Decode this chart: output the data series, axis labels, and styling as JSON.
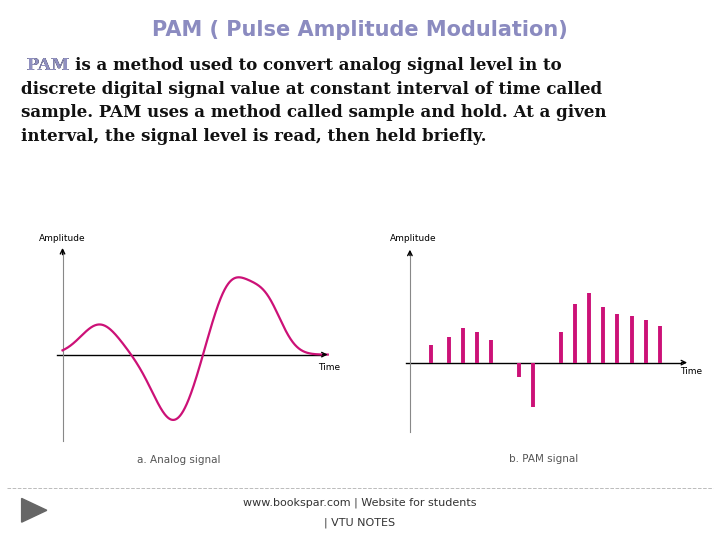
{
  "title": "PAM ( Pulse Amplitude Modulation)",
  "title_color": "#8B8BC0",
  "title_fontsize": 15,
  "pam_word_color": "#9090C0",
  "body_text_black": "is a method used to convert analog signal level in to\ndiscrete digital signal value at constant interval of time called\nsample. PAM uses a method called sample and hold. At a given\ninterval, the signal level is read, then held briefly.",
  "body_fontsize": 12,
  "signal_color": "#CC1177",
  "axis_color": "#000000",
  "label_a": "a. Analog signal",
  "label_b": "b. PAM signal",
  "amplitude_label": "Amplitude",
  "time_label": "Time",
  "footer_line1": "www.bookspar.com | Website for students",
  "footer_line2": "| VTU NOTES",
  "footer_fontsize": 8,
  "bg_color": "#FFFFFF",
  "pam_bar_x": [
    0.3,
    0.55,
    0.75,
    0.95,
    1.15,
    1.55,
    1.75,
    2.15,
    2.35,
    2.55,
    2.75,
    2.95,
    3.15,
    3.35,
    3.55
  ],
  "pam_bar_h": [
    0.22,
    0.32,
    0.42,
    0.38,
    0.28,
    -0.18,
    -0.55,
    0.38,
    0.72,
    0.85,
    0.68,
    0.6,
    0.57,
    0.52,
    0.45
  ]
}
